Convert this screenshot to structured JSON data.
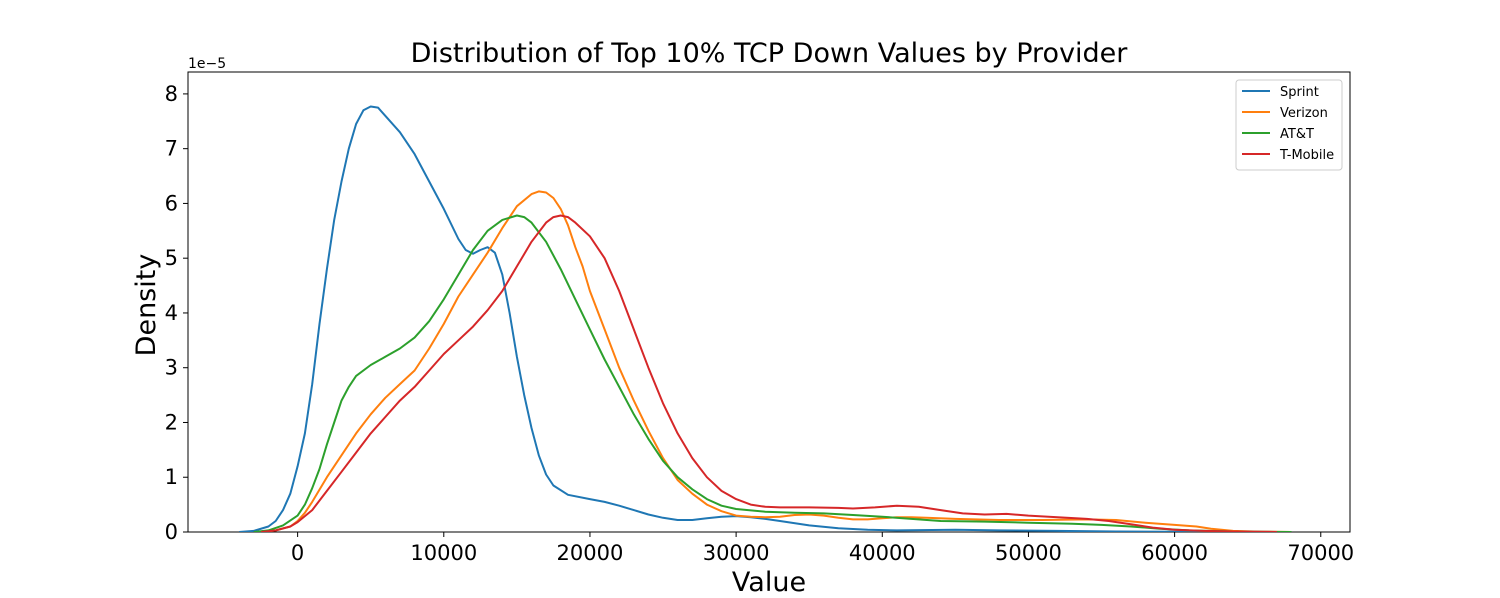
{
  "chart_data": {
    "type": "line",
    "title": "Distribution of Top 10% TCP Down Values by Provider",
    "xlabel": "Value",
    "ylabel": "Density",
    "y_offset_label": "1e−5",
    "xlim": [
      -7500,
      72000
    ],
    "ylim": [
      0,
      8.4
    ],
    "x_ticks": [
      0,
      10000,
      20000,
      30000,
      40000,
      50000,
      60000,
      70000
    ],
    "x_tick_labels": [
      "0",
      "10000",
      "20000",
      "30000",
      "40000",
      "50000",
      "60000",
      "70000"
    ],
    "y_ticks": [
      0,
      1,
      2,
      3,
      4,
      5,
      6,
      7,
      8
    ],
    "y_tick_labels": [
      "0",
      "1",
      "2",
      "3",
      "4",
      "5",
      "6",
      "7",
      "8"
    ],
    "grid": false,
    "legend_position": "top-right",
    "series": [
      {
        "name": "Sprint",
        "color": "#1f77b4",
        "points": [
          [
            -4000,
            0.0
          ],
          [
            -3000,
            0.02
          ],
          [
            -2000,
            0.1
          ],
          [
            -1500,
            0.2
          ],
          [
            -1000,
            0.4
          ],
          [
            -500,
            0.7
          ],
          [
            0,
            1.2
          ],
          [
            500,
            1.8
          ],
          [
            1000,
            2.7
          ],
          [
            1500,
            3.8
          ],
          [
            2000,
            4.8
          ],
          [
            2500,
            5.7
          ],
          [
            3000,
            6.4
          ],
          [
            3500,
            7.0
          ],
          [
            4000,
            7.45
          ],
          [
            4500,
            7.7
          ],
          [
            5000,
            7.77
          ],
          [
            5500,
            7.75
          ],
          [
            6000,
            7.6
          ],
          [
            7000,
            7.3
          ],
          [
            8000,
            6.9
          ],
          [
            9000,
            6.4
          ],
          [
            10000,
            5.9
          ],
          [
            11000,
            5.35
          ],
          [
            11500,
            5.15
          ],
          [
            12000,
            5.08
          ],
          [
            12500,
            5.15
          ],
          [
            13000,
            5.2
          ],
          [
            13500,
            5.1
          ],
          [
            14000,
            4.7
          ],
          [
            14500,
            4.0
          ],
          [
            15000,
            3.2
          ],
          [
            15500,
            2.5
          ],
          [
            16000,
            1.9
          ],
          [
            16500,
            1.4
          ],
          [
            17000,
            1.05
          ],
          [
            17500,
            0.85
          ],
          [
            18500,
            0.68
          ],
          [
            20000,
            0.6
          ],
          [
            21000,
            0.55
          ],
          [
            22000,
            0.48
          ],
          [
            23000,
            0.4
          ],
          [
            24000,
            0.32
          ],
          [
            25000,
            0.26
          ],
          [
            26000,
            0.22
          ],
          [
            27000,
            0.22
          ],
          [
            28000,
            0.25
          ],
          [
            29000,
            0.28
          ],
          [
            30000,
            0.29
          ],
          [
            31000,
            0.27
          ],
          [
            32000,
            0.24
          ],
          [
            33000,
            0.2
          ],
          [
            35000,
            0.12
          ],
          [
            37000,
            0.07
          ],
          [
            39000,
            0.04
          ],
          [
            41000,
            0.03
          ],
          [
            45000,
            0.04
          ],
          [
            48000,
            0.03
          ],
          [
            52000,
            0.02
          ],
          [
            56000,
            0.01
          ],
          [
            60000,
            0.005
          ],
          [
            64000,
            0.0
          ],
          [
            68000,
            0.0
          ]
        ]
      },
      {
        "name": "Verizon",
        "color": "#ff7f0e",
        "points": [
          [
            -2500,
            0.0
          ],
          [
            -1500,
            0.03
          ],
          [
            -500,
            0.1
          ],
          [
            0,
            0.2
          ],
          [
            500,
            0.35
          ],
          [
            1000,
            0.55
          ],
          [
            2000,
            1.0
          ],
          [
            3000,
            1.4
          ],
          [
            4000,
            1.8
          ],
          [
            5000,
            2.15
          ],
          [
            6000,
            2.45
          ],
          [
            7000,
            2.7
          ],
          [
            8000,
            2.95
          ],
          [
            9000,
            3.35
          ],
          [
            10000,
            3.8
          ],
          [
            11000,
            4.3
          ],
          [
            12000,
            4.7
          ],
          [
            13000,
            5.1
          ],
          [
            14000,
            5.55
          ],
          [
            15000,
            5.95
          ],
          [
            16000,
            6.17
          ],
          [
            16500,
            6.22
          ],
          [
            17000,
            6.2
          ],
          [
            17500,
            6.1
          ],
          [
            18000,
            5.9
          ],
          [
            18500,
            5.6
          ],
          [
            19000,
            5.2
          ],
          [
            19500,
            4.85
          ],
          [
            20000,
            4.4
          ],
          [
            21000,
            3.7
          ],
          [
            22000,
            3.0
          ],
          [
            23000,
            2.4
          ],
          [
            24000,
            1.85
          ],
          [
            25000,
            1.35
          ],
          [
            26000,
            0.95
          ],
          [
            27000,
            0.7
          ],
          [
            28000,
            0.5
          ],
          [
            29000,
            0.38
          ],
          [
            30000,
            0.3
          ],
          [
            31000,
            0.28
          ],
          [
            32000,
            0.27
          ],
          [
            33000,
            0.28
          ],
          [
            34000,
            0.31
          ],
          [
            35000,
            0.32
          ],
          [
            36000,
            0.3
          ],
          [
            37000,
            0.26
          ],
          [
            38000,
            0.23
          ],
          [
            39000,
            0.23
          ],
          [
            40000,
            0.25
          ],
          [
            41000,
            0.27
          ],
          [
            42000,
            0.27
          ],
          [
            43000,
            0.26
          ],
          [
            45000,
            0.24
          ],
          [
            48000,
            0.22
          ],
          [
            51000,
            0.22
          ],
          [
            54000,
            0.23
          ],
          [
            56000,
            0.22
          ],
          [
            58000,
            0.17
          ],
          [
            60000,
            0.13
          ],
          [
            61500,
            0.1
          ],
          [
            62500,
            0.06
          ],
          [
            64000,
            0.02
          ],
          [
            66000,
            0.005
          ],
          [
            68000,
            0.0
          ]
        ]
      },
      {
        "name": "AT&T",
        "color": "#2ca02c",
        "points": [
          [
            -3000,
            0.0
          ],
          [
            -2000,
            0.03
          ],
          [
            -1000,
            0.12
          ],
          [
            0,
            0.3
          ],
          [
            500,
            0.5
          ],
          [
            1000,
            0.8
          ],
          [
            1500,
            1.15
          ],
          [
            2000,
            1.6
          ],
          [
            2500,
            2.0
          ],
          [
            3000,
            2.4
          ],
          [
            3500,
            2.65
          ],
          [
            4000,
            2.85
          ],
          [
            5000,
            3.05
          ],
          [
            6000,
            3.2
          ],
          [
            7000,
            3.35
          ],
          [
            8000,
            3.55
          ],
          [
            9000,
            3.85
          ],
          [
            10000,
            4.25
          ],
          [
            11000,
            4.7
          ],
          [
            12000,
            5.15
          ],
          [
            13000,
            5.5
          ],
          [
            14000,
            5.7
          ],
          [
            15000,
            5.78
          ],
          [
            15500,
            5.75
          ],
          [
            16000,
            5.65
          ],
          [
            17000,
            5.3
          ],
          [
            18000,
            4.8
          ],
          [
            19000,
            4.25
          ],
          [
            20000,
            3.7
          ],
          [
            21000,
            3.15
          ],
          [
            22000,
            2.65
          ],
          [
            23000,
            2.15
          ],
          [
            24000,
            1.7
          ],
          [
            25000,
            1.3
          ],
          [
            26000,
            1.0
          ],
          [
            27000,
            0.78
          ],
          [
            28000,
            0.6
          ],
          [
            29000,
            0.48
          ],
          [
            30000,
            0.42
          ],
          [
            32000,
            0.37
          ],
          [
            34000,
            0.35
          ],
          [
            36000,
            0.34
          ],
          [
            38000,
            0.31
          ],
          [
            40000,
            0.28
          ],
          [
            42000,
            0.24
          ],
          [
            44000,
            0.2
          ],
          [
            47000,
            0.19
          ],
          [
            50000,
            0.17
          ],
          [
            53000,
            0.15
          ],
          [
            55000,
            0.13
          ],
          [
            57000,
            0.1
          ],
          [
            59000,
            0.06
          ],
          [
            61000,
            0.03
          ],
          [
            64000,
            0.01
          ],
          [
            68000,
            0.0
          ]
        ]
      },
      {
        "name": "T-Mobile",
        "color": "#d62728",
        "points": [
          [
            -2500,
            0.0
          ],
          [
            -1500,
            0.03
          ],
          [
            -500,
            0.1
          ],
          [
            0,
            0.18
          ],
          [
            1000,
            0.4
          ],
          [
            2000,
            0.75
          ],
          [
            3000,
            1.1
          ],
          [
            4000,
            1.45
          ],
          [
            5000,
            1.8
          ],
          [
            6000,
            2.1
          ],
          [
            7000,
            2.4
          ],
          [
            8000,
            2.65
          ],
          [
            9000,
            2.95
          ],
          [
            10000,
            3.25
          ],
          [
            11000,
            3.5
          ],
          [
            12000,
            3.75
          ],
          [
            13000,
            4.05
          ],
          [
            14000,
            4.4
          ],
          [
            15000,
            4.85
          ],
          [
            16000,
            5.3
          ],
          [
            17000,
            5.65
          ],
          [
            17500,
            5.75
          ],
          [
            18000,
            5.78
          ],
          [
            18500,
            5.75
          ],
          [
            19000,
            5.65
          ],
          [
            20000,
            5.4
          ],
          [
            21000,
            5.0
          ],
          [
            22000,
            4.4
          ],
          [
            23000,
            3.7
          ],
          [
            24000,
            3.0
          ],
          [
            25000,
            2.35
          ],
          [
            26000,
            1.8
          ],
          [
            27000,
            1.35
          ],
          [
            28000,
            1.0
          ],
          [
            29000,
            0.75
          ],
          [
            30000,
            0.6
          ],
          [
            31000,
            0.5
          ],
          [
            32000,
            0.46
          ],
          [
            33000,
            0.45
          ],
          [
            35000,
            0.45
          ],
          [
            37000,
            0.44
          ],
          [
            38000,
            0.43
          ],
          [
            39500,
            0.45
          ],
          [
            41000,
            0.48
          ],
          [
            42500,
            0.46
          ],
          [
            44000,
            0.4
          ],
          [
            45500,
            0.34
          ],
          [
            47000,
            0.32
          ],
          [
            48500,
            0.33
          ],
          [
            50000,
            0.3
          ],
          [
            52000,
            0.27
          ],
          [
            54000,
            0.24
          ],
          [
            55500,
            0.2
          ],
          [
            57000,
            0.14
          ],
          [
            58500,
            0.08
          ],
          [
            60000,
            0.04
          ],
          [
            62000,
            0.02
          ],
          [
            64000,
            0.01
          ],
          [
            67000,
            0.0
          ]
        ]
      }
    ]
  }
}
